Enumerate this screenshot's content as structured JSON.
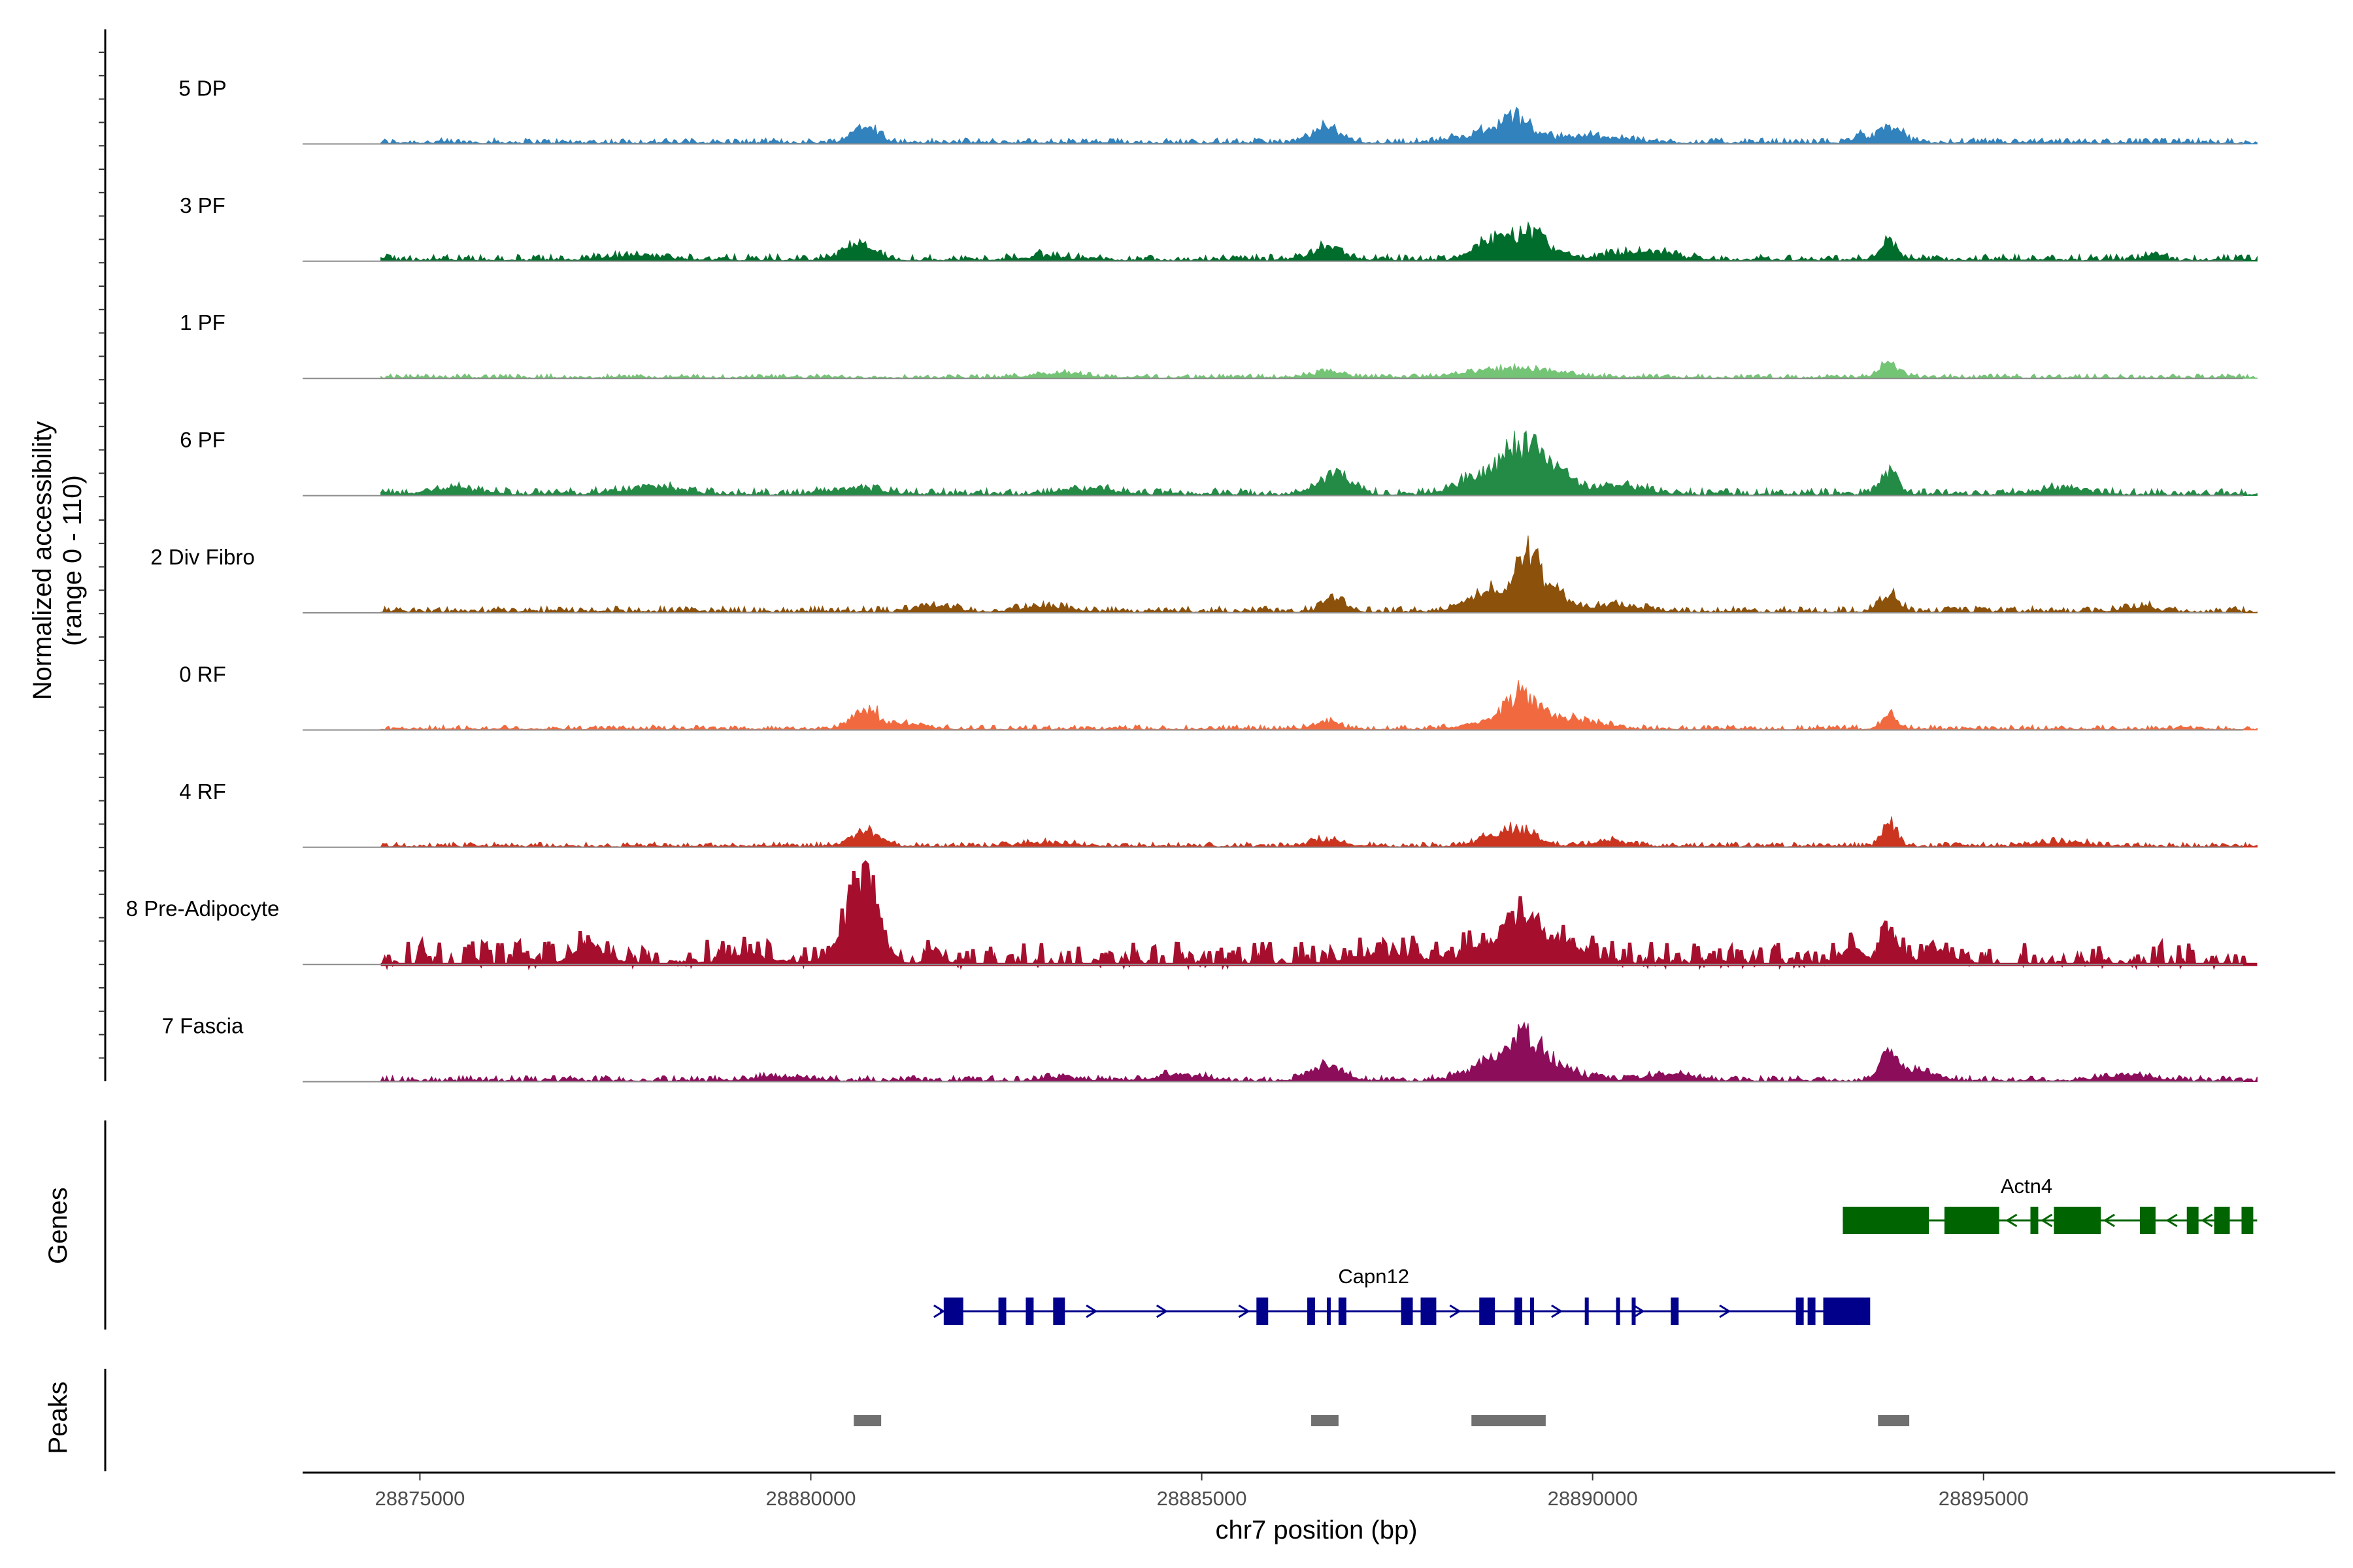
{
  "chart_data": {
    "type": "area",
    "title": "",
    "ylabel": [
      "Normalized accessibility",
      "(range 0 - 110)"
    ],
    "xlabel": "chr7 position (bp)",
    "xlim": [
      28873500,
      28899500
    ],
    "ylim": [
      0,
      110
    ],
    "x_ticks": [
      28875000,
      28880000,
      28885000,
      28890000,
      28895000
    ],
    "x_tick_labels": [
      "28875000",
      "28880000",
      "28885000",
      "28890000",
      "28895000"
    ],
    "tracks": [
      {
        "name": "5 DP",
        "color": "#3182BD",
        "scale": 0.55,
        "base": 0.12,
        "density": 1.0,
        "fill_width": 1,
        "peaks": [
          [
            28880700,
            1.0,
            160
          ],
          [
            28886600,
            0.75,
            180
          ],
          [
            28888500,
            0.35,
            300
          ],
          [
            28889000,
            1.25,
            230
          ],
          [
            28890000,
            0.35,
            400
          ],
          [
            28893400,
            0.45,
            80
          ],
          [
            28893800,
            0.85,
            140
          ]
        ]
      },
      {
        "name": "3 PF",
        "color": "#006D2C",
        "scale": 0.55,
        "base": 0.14,
        "density": 1.0,
        "fill_width": 1,
        "peaks": [
          [
            28877800,
            0.2,
            400
          ],
          [
            28880600,
            0.75,
            200
          ],
          [
            28883000,
            0.2,
            300
          ],
          [
            28886600,
            0.65,
            200
          ],
          [
            28888700,
            1.0,
            200
          ],
          [
            28889200,
            1.45,
            230
          ],
          [
            28890600,
            0.4,
            400
          ],
          [
            28893800,
            1.0,
            100
          ],
          [
            28897200,
            0.3,
            100
          ]
        ]
      },
      {
        "name": "1 PF",
        "color": "#74C476",
        "scale": 0.55,
        "base": 0.09,
        "density": 1.0,
        "fill_width": 1,
        "peaks": [
          [
            28883200,
            0.25,
            300
          ],
          [
            28886600,
            0.3,
            200
          ],
          [
            28889000,
            0.45,
            500
          ],
          [
            28893800,
            0.75,
            120
          ]
        ]
      },
      {
        "name": "6 PF",
        "color": "#238B45",
        "scale": 0.55,
        "base": 0.15,
        "density": 1.0,
        "fill_width": 1,
        "peaks": [
          [
            28875500,
            0.3,
            300
          ],
          [
            28878000,
            0.35,
            400
          ],
          [
            28880600,
            0.3,
            300
          ],
          [
            28883500,
            0.25,
            300
          ],
          [
            28886700,
            1.0,
            200
          ],
          [
            28888600,
            0.9,
            300
          ],
          [
            28889100,
            2.1,
            220
          ],
          [
            28889500,
            1.1,
            250
          ],
          [
            28890400,
            0.4,
            300
          ],
          [
            28893800,
            1.15,
            110
          ],
          [
            28896000,
            0.3,
            300
          ]
        ]
      },
      {
        "name": "2 Div Fibro",
        "color": "#8C510A",
        "scale": 0.55,
        "base": 0.13,
        "density": 1.0,
        "fill_width": 1,
        "peaks": [
          [
            28881600,
            0.3,
            200
          ],
          [
            28883000,
            0.25,
            300
          ],
          [
            28886700,
            0.6,
            150
          ],
          [
            28888800,
            1.25,
            300
          ],
          [
            28889200,
            2.2,
            140
          ],
          [
            28889500,
            0.9,
            200
          ],
          [
            28890300,
            0.35,
            300
          ],
          [
            28893800,
            0.85,
            120
          ],
          [
            28897000,
            0.25,
            200
          ]
        ]
      },
      {
        "name": "0 RF",
        "color": "#F16A3F",
        "scale": 0.55,
        "base": 0.1,
        "density": 1.0,
        "fill_width": 1,
        "peaks": [
          [
            28880700,
            1.05,
            180
          ],
          [
            28881300,
            0.25,
            200
          ],
          [
            28886600,
            0.4,
            150
          ],
          [
            28888700,
            0.4,
            300
          ],
          [
            28889100,
            1.55,
            200
          ],
          [
            28889700,
            0.55,
            350
          ],
          [
            28893800,
            0.75,
            100
          ]
        ]
      },
      {
        "name": "4 RF",
        "color": "#CB3520",
        "scale": 0.55,
        "base": 0.1,
        "density": 1.0,
        "fill_width": 1,
        "peaks": [
          [
            28880700,
            0.75,
            180
          ],
          [
            28883000,
            0.2,
            300
          ],
          [
            28886600,
            0.35,
            200
          ],
          [
            28888700,
            0.5,
            200
          ],
          [
            28889100,
            0.8,
            200
          ],
          [
            28890200,
            0.3,
            200
          ],
          [
            28893800,
            1.15,
            100
          ],
          [
            28896000,
            0.25,
            300
          ]
        ]
      },
      {
        "name": "8 Pre-Adipocyte",
        "color": "#A50F2D",
        "scale": 0.55,
        "base": 0.45,
        "density": 0.42,
        "fill_width": 5,
        "peaks": [
          [
            28877200,
            0.85,
            200
          ],
          [
            28879200,
            0.35,
            300
          ],
          [
            28880400,
            0.6,
            200
          ],
          [
            28880700,
            3.7,
            170
          ],
          [
            28881600,
            0.45,
            100
          ],
          [
            28887300,
            0.4,
            400
          ],
          [
            28888800,
            0.9,
            400
          ],
          [
            28889100,
            1.35,
            200
          ],
          [
            28889600,
            0.9,
            300
          ],
          [
            28893300,
            0.7,
            150
          ],
          [
            28893800,
            1.55,
            100
          ],
          [
            28894400,
            0.5,
            200
          ]
        ]
      },
      {
        "name": "7 Fascia",
        "color": "#8C0D5A",
        "scale": 0.55,
        "base": 0.12,
        "density": 1.0,
        "fill_width": 1,
        "peaks": [
          [
            28879600,
            0.2,
            300
          ],
          [
            28883200,
            0.2,
            200
          ],
          [
            28884700,
            0.3,
            300
          ],
          [
            28886600,
            0.75,
            200
          ],
          [
            28888700,
            0.9,
            300
          ],
          [
            28889100,
            1.75,
            230
          ],
          [
            28889500,
            0.7,
            300
          ],
          [
            28891000,
            0.3,
            300
          ],
          [
            28893800,
            1.25,
            120
          ],
          [
            28894200,
            0.5,
            200
          ],
          [
            28896800,
            0.25,
            300
          ]
        ]
      }
    ],
    "genes_label": "Genes",
    "genes": [
      {
        "name": "Actn4",
        "color": "#006400",
        "strand": "-",
        "start": 28893200,
        "end": 28898500,
        "exons": [
          [
            28893200,
            28894300,
            "utr"
          ],
          [
            28894500,
            28895200,
            "cds"
          ],
          [
            28895600,
            28895700,
            "cds"
          ],
          [
            28895900,
            28896500,
            "cds"
          ],
          [
            28897000,
            28897200,
            "cds"
          ],
          [
            28897600,
            28897750,
            "cds"
          ],
          [
            28897950,
            28898150,
            "cds"
          ],
          [
            28898300,
            28898450,
            "cds"
          ]
        ],
        "arrows": [
          28895350,
          28895800,
          28896600,
          28897400,
          28897850
        ]
      },
      {
        "name": "Capn12",
        "color": "#00008B",
        "strand": "+",
        "start": 28881650,
        "end": 28893500,
        "exons": [
          [
            28881700,
            28881950,
            "cds"
          ],
          [
            28882400,
            28882500,
            "cds"
          ],
          [
            28882750,
            28882850,
            "cds"
          ],
          [
            28883100,
            28883250,
            "cds"
          ],
          [
            28885700,
            28885850,
            "cds"
          ],
          [
            28886350,
            28886450,
            "cds"
          ],
          [
            28886600,
            28886650,
            "cds"
          ],
          [
            28886750,
            28886850,
            "cds"
          ],
          [
            28887550,
            28887700,
            "cds"
          ],
          [
            28887800,
            28888000,
            "cds"
          ],
          [
            28888550,
            28888750,
            "cds"
          ],
          [
            28889000,
            28889100,
            "cds"
          ],
          [
            28889200,
            28889250,
            "cds"
          ],
          [
            28889900,
            28889950,
            "cds"
          ],
          [
            28890300,
            28890350,
            "cds"
          ],
          [
            28890500,
            28890550,
            "cds"
          ],
          [
            28891000,
            28891100,
            "cds"
          ],
          [
            28892600,
            28892700,
            "cds"
          ],
          [
            28892750,
            28892850,
            "cds"
          ],
          [
            28892950,
            28893550,
            "utr"
          ]
        ],
        "arrows": [
          28881650,
          28883600,
          28884500,
          28885550,
          28888250,
          28889550,
          28890600,
          28891700
        ]
      }
    ],
    "peaks_label": "Peaks",
    "peak_regions": [
      [
        28880550,
        28880900
      ],
      [
        28886400,
        28886750
      ],
      [
        28888450,
        28889400
      ],
      [
        28893650,
        28894050
      ]
    ]
  }
}
